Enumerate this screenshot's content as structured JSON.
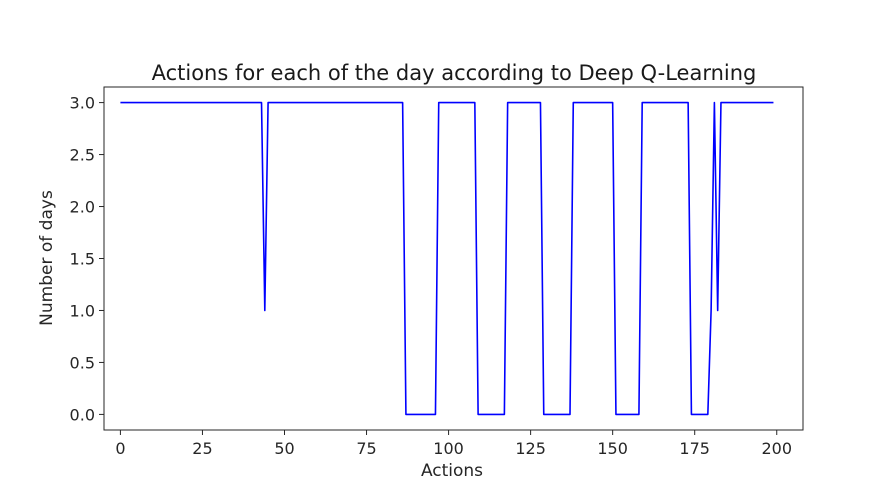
{
  "chart_data": {
    "type": "line",
    "title": "Actions for each of the day according to Deep Q-Learning",
    "xlabel": "Actions",
    "ylabel": "Number of days",
    "xlim": [
      -5,
      208
    ],
    "ylim": [
      -0.15,
      3.15
    ],
    "xticks": [
      0,
      25,
      50,
      75,
      100,
      125,
      150,
      175,
      200
    ],
    "yticks": [
      0.0,
      0.5,
      1.0,
      1.5,
      2.0,
      2.5,
      3.0
    ],
    "xtick_labels": [
      "0",
      "25",
      "50",
      "75",
      "100",
      "125",
      "150",
      "175",
      "200"
    ],
    "ytick_labels": [
      "0.0",
      "0.5",
      "1.0",
      "1.5",
      "2.0",
      "2.5",
      "3.0"
    ],
    "grid": false,
    "legend": "none",
    "series": [
      {
        "color": "#0000ff",
        "x": [
          0,
          43,
          44,
          45,
          86,
          87,
          96,
          97,
          108,
          109,
          117,
          118,
          128,
          129,
          137,
          138,
          150,
          151,
          158,
          159,
          173,
          174,
          179,
          180,
          181,
          182,
          183,
          184,
          199
        ],
        "y": [
          3,
          3,
          1,
          3,
          3,
          0,
          0,
          3,
          3,
          0,
          0,
          3,
          3,
          0,
          0,
          3,
          3,
          0,
          0,
          3,
          3,
          0,
          0,
          1,
          3,
          1,
          3,
          3,
          3
        ]
      }
    ]
  }
}
